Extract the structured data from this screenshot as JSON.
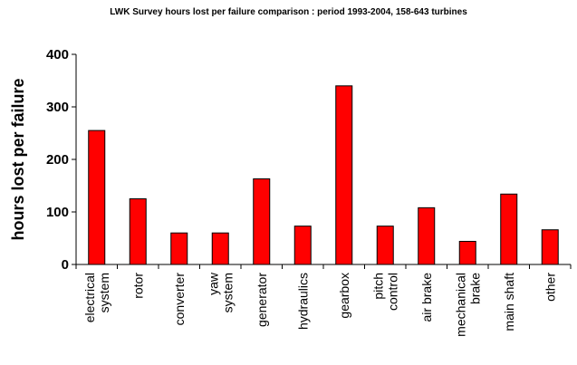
{
  "chart_data": {
    "type": "bar",
    "title": "LWK Survey hours lost per failure comparison : period 1993-2004, 158-643 turbines",
    "xlabel": "",
    "ylabel": "hours lost per failure",
    "ylim": [
      0,
      400
    ],
    "yticks": [
      0,
      100,
      200,
      300,
      400
    ],
    "categories": [
      [
        "electrical",
        "system"
      ],
      [
        "rotor"
      ],
      [
        "converter"
      ],
      [
        "yaw",
        "system"
      ],
      [
        "generator"
      ],
      [
        "hydraulics"
      ],
      [
        "gearbox"
      ],
      [
        "pitch",
        "control"
      ],
      [
        "air brake"
      ],
      [
        "mechanical",
        "brake"
      ],
      [
        "main shaft"
      ],
      [
        "other"
      ]
    ],
    "values": [
      255,
      125,
      60,
      60,
      163,
      73,
      340,
      73,
      108,
      44,
      134,
      66
    ],
    "bar_color": "#ff0000",
    "grid": false,
    "legend": "none"
  }
}
